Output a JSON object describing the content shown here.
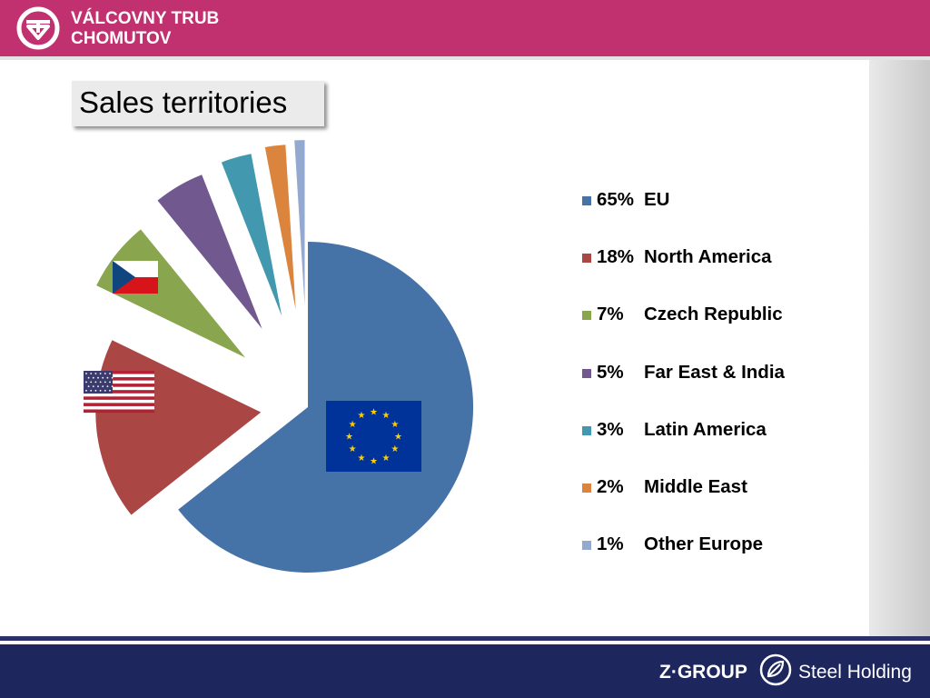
{
  "header": {
    "company_line1": "VÁLCOVNY TRUB",
    "company_line2": "CHOMUTOV",
    "brand_color": "#c1306f"
  },
  "footer": {
    "group": "Z·GROUP",
    "holding": "Steel Holding",
    "color": "#1d275e"
  },
  "chart_data": {
    "type": "pie",
    "title": "Sales territories",
    "legend_position": "right",
    "slices": [
      {
        "pct_label": "65%",
        "name": "EU",
        "value": 65,
        "color": "#4572a7",
        "flag": "eu-flag"
      },
      {
        "pct_label": "18%",
        "name": "North America",
        "value": 18,
        "color": "#aa4643",
        "flag": "us-flag"
      },
      {
        "pct_label": "7%",
        "name": "Czech Republic",
        "value": 7,
        "color": "#89a54e",
        "flag": "czech-flag"
      },
      {
        "pct_label": "5%",
        "name": "Far East & India",
        "value": 5,
        "color": "#71588f",
        "flag": ""
      },
      {
        "pct_label": "3%",
        "name": "Latin America",
        "value": 3,
        "color": "#4198af",
        "flag": ""
      },
      {
        "pct_label": "2%",
        "name": "Middle East",
        "value": 2,
        "color": "#db843d",
        "flag": ""
      },
      {
        "pct_label": "1%",
        "name": "Other Europe",
        "value": 1,
        "color": "#93a9cf",
        "flag": ""
      }
    ]
  }
}
